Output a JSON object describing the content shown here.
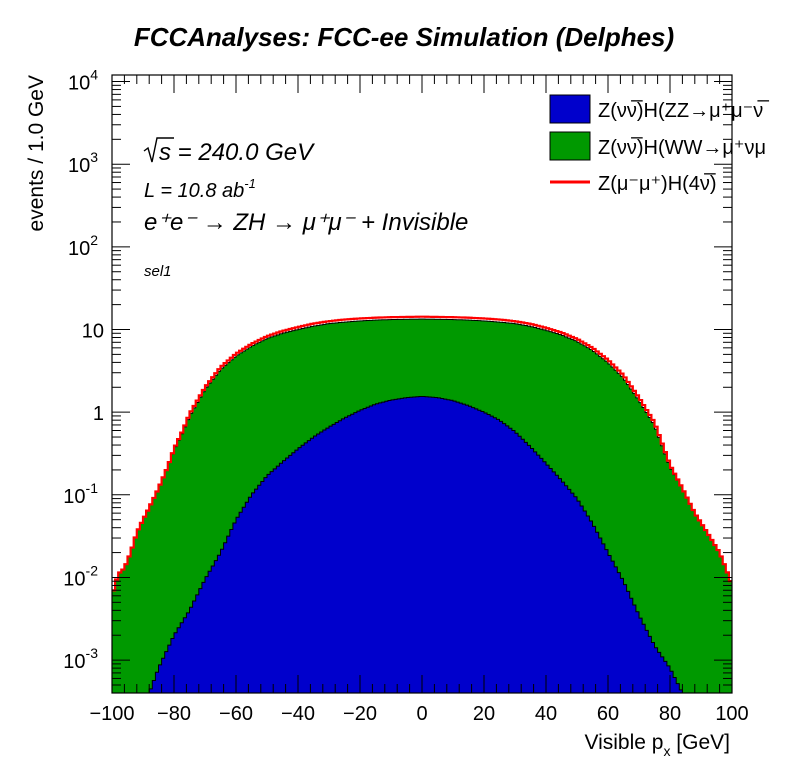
{
  "chart_data": {
    "type": "area",
    "title": "FCCAnalyses: FCC-ee Simulation (Delphes)",
    "xlabel": "Visible p_x [GeV]",
    "ylabel": "events / 1.0 GeV",
    "xlim": [
      -100,
      100
    ],
    "ylim": [
      0.0004,
      12000
    ],
    "yscale": "log",
    "x_ticks": [
      -100,
      -80,
      -60,
      -40,
      -20,
      0,
      20,
      40,
      60,
      80,
      100
    ],
    "x_tick_labels": [
      "−100",
      "−80",
      "−60",
      "−40",
      "−20",
      "0",
      "20",
      "40",
      "60",
      "80",
      "100"
    ],
    "y_ticks": [
      {
        "value": 0.001,
        "mant": "10",
        "exp": "-3"
      },
      {
        "value": 0.01,
        "mant": "10",
        "exp": "-2"
      },
      {
        "value": 0.1,
        "mant": "10",
        "exp": "-1"
      },
      {
        "value": 1,
        "mant": "1",
        "exp": ""
      },
      {
        "value": 10,
        "mant": "10",
        "exp": ""
      },
      {
        "value": 100,
        "mant": "10",
        "exp": "2"
      },
      {
        "value": 1000,
        "mant": "10",
        "exp": "3"
      },
      {
        "value": 10000,
        "mant": "10",
        "exp": "4"
      }
    ],
    "annotations": {
      "sqrt_s": "s = 240.0 GeV",
      "lumi_text": "L = 10.8 ab",
      "lumi_exp": "-1",
      "process": "e⁺e⁻ → ZH → μ⁺μ⁻ + Invisible",
      "selection": "sel1"
    },
    "series": [
      {
        "name": "Z(νν̅)H(ZZ→μ⁺μ⁻ν̅ν)",
        "legend_label": "Z(νν̅)H(ZZ→μ⁺μ⁻ν̅",
        "style": "filled",
        "color": "#0000cc",
        "x": [
          -88,
          -85,
          -80,
          -75,
          -70,
          -65,
          -60,
          -55,
          -50,
          -45,
          -40,
          -35,
          -30,
          -25,
          -20,
          -15,
          -10,
          -5,
          0,
          5,
          10,
          15,
          20,
          25,
          30,
          35,
          40,
          45,
          50,
          55,
          60,
          65,
          70,
          75,
          80,
          84
        ],
        "values": [
          0.0004,
          0.0008,
          0.002,
          0.004,
          0.0095,
          0.02,
          0.05,
          0.1,
          0.17,
          0.25,
          0.36,
          0.5,
          0.66,
          0.85,
          1.05,
          1.25,
          1.4,
          1.5,
          1.55,
          1.5,
          1.38,
          1.2,
          1.0,
          0.8,
          0.58,
          0.38,
          0.24,
          0.15,
          0.09,
          0.045,
          0.02,
          0.009,
          0.0035,
          0.0015,
          0.0008,
          0.0004
        ]
      },
      {
        "name": "Z(νν̅)H(WW→μ⁺νμ⁻ν̅)",
        "legend_label": "Z(νν̅)H(WW→μ⁺νμ",
        "style": "filled-stacked",
        "color": "#009900",
        "x": [
          -100,
          -98,
          -96,
          -94,
          -92,
          -90,
          -88,
          -85,
          -82,
          -80,
          -77,
          -75,
          -70,
          -65,
          -60,
          -55,
          -50,
          -45,
          -40,
          -35,
          -30,
          -25,
          -20,
          -15,
          -10,
          -5,
          0,
          5,
          10,
          15,
          20,
          25,
          30,
          35,
          40,
          45,
          50,
          55,
          60,
          65,
          70,
          75,
          78,
          80,
          84,
          88,
          92,
          96,
          98,
          100
        ],
        "values": [
          0.006,
          0.011,
          0.013,
          0.02,
          0.035,
          0.05,
          0.07,
          0.12,
          0.22,
          0.35,
          0.6,
          0.9,
          1.9,
          3.3,
          4.8,
          6.3,
          7.8,
          9.0,
          10.0,
          11.0,
          11.8,
          12.3,
          12.7,
          13.0,
          13.2,
          13.3,
          13.4,
          13.3,
          13.2,
          13.0,
          12.7,
          12.3,
          11.8,
          10.9,
          9.8,
          8.6,
          7.2,
          5.6,
          4.0,
          2.6,
          1.4,
          0.7,
          0.35,
          0.22,
          0.12,
          0.06,
          0.035,
          0.02,
          0.013,
          0.008
        ]
      },
      {
        "name": "Z(μ⁻μ⁺)H(4ν̅)",
        "legend_label": "Z(μ⁻μ⁺)H(4ν̅)",
        "style": "line",
        "color": "#ff0000",
        "x": [
          -100,
          -98,
          -96,
          -94,
          -92,
          -90,
          -88,
          -85,
          -82,
          -80,
          -77,
          -75,
          -70,
          -65,
          -60,
          -55,
          -50,
          -45,
          -40,
          -35,
          -30,
          -25,
          -20,
          -15,
          -10,
          -5,
          0,
          5,
          10,
          15,
          20,
          25,
          30,
          35,
          40,
          45,
          50,
          55,
          60,
          65,
          70,
          75,
          78,
          80,
          84,
          88,
          92,
          96,
          98,
          100
        ],
        "values": [
          0.006,
          0.011,
          0.013,
          0.02,
          0.035,
          0.05,
          0.07,
          0.12,
          0.22,
          0.36,
          0.62,
          0.95,
          2.0,
          3.5,
          5.1,
          6.7,
          8.3,
          9.6,
          10.7,
          11.8,
          12.6,
          13.2,
          13.6,
          13.9,
          14.1,
          14.2,
          14.3,
          14.2,
          14.1,
          13.9,
          13.6,
          13.2,
          12.6,
          11.7,
          10.5,
          9.2,
          7.7,
          6.0,
          4.3,
          2.8,
          1.5,
          0.75,
          0.37,
          0.23,
          0.12,
          0.06,
          0.035,
          0.02,
          0.013,
          0.008
        ]
      }
    ]
  }
}
